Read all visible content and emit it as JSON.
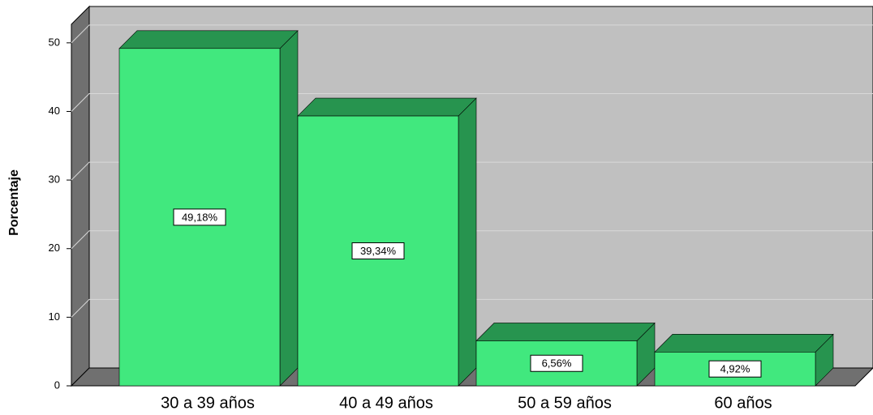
{
  "chart_data": {
    "type": "bar3d",
    "y_label": "Porcentaje",
    "categories": [
      "30 a 39 años",
      "40 a 49 años",
      "50 a 59 años",
      "60 años"
    ],
    "values": [
      49.18,
      39.34,
      6.56,
      4.92
    ],
    "value_labels": [
      "49,18%",
      "39,34%",
      "6,56%",
      "4,92%"
    ],
    "color": "#41e87e",
    "ylim": [
      0,
      52.7
    ],
    "yticks": [
      0,
      10,
      20,
      30,
      40,
      50
    ],
    "grid": true
  }
}
